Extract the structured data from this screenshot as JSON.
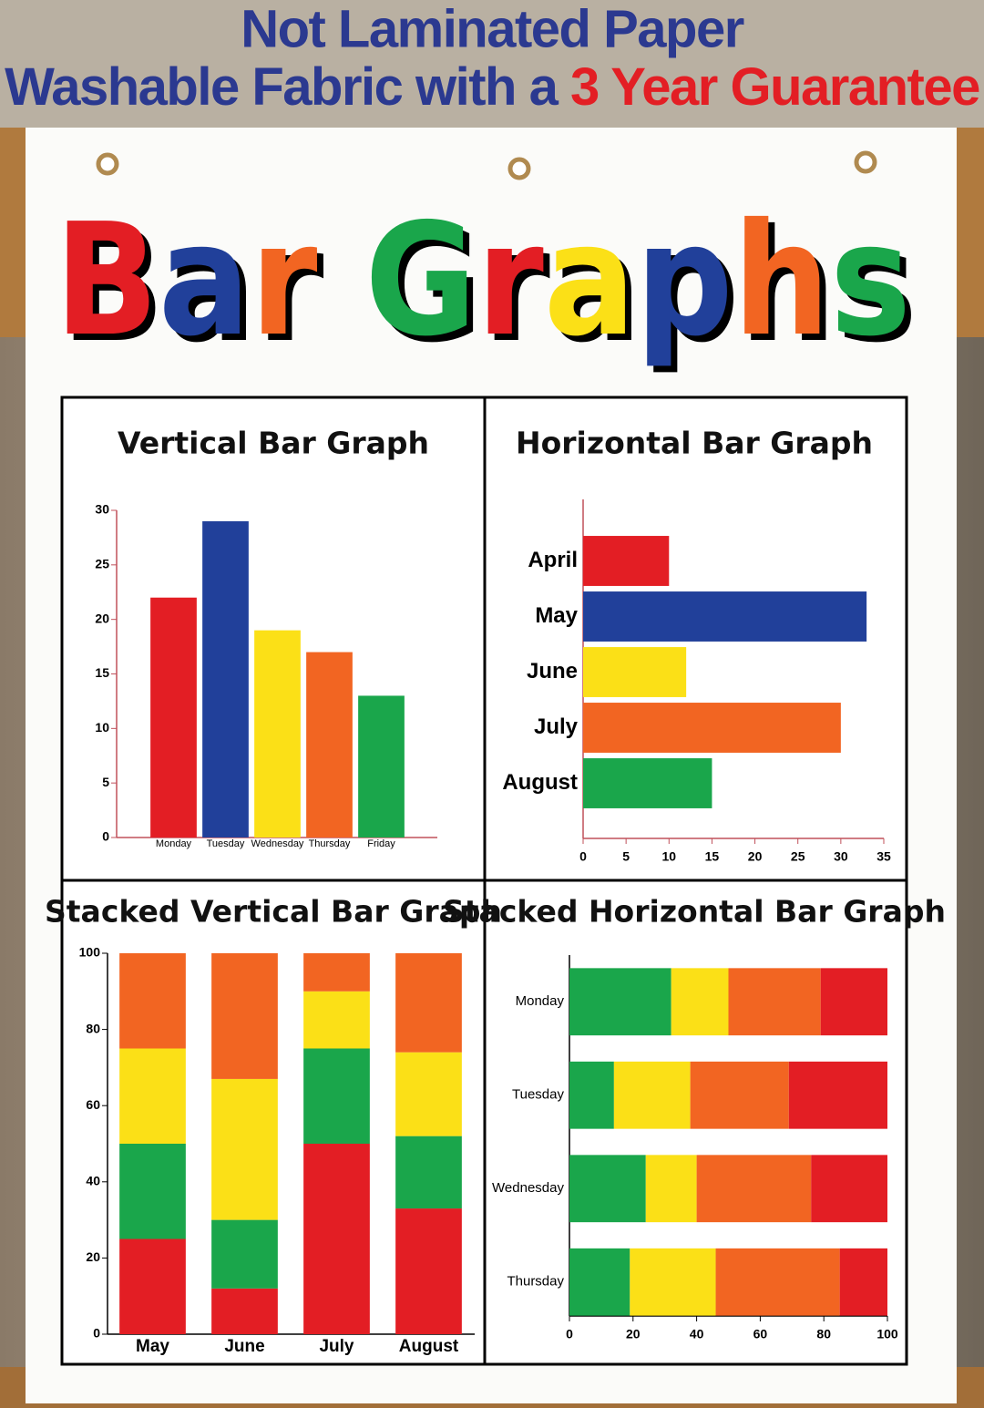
{
  "header": {
    "line1": "Not Laminated Paper",
    "line2_prefix": "Washable Fabric with a",
    "line2_highlight": "3 Year Guarantee",
    "title": "Bar Graphs",
    "title_colors": [
      "#e31e24",
      "#21409a",
      "#f26522",
      "#1aa64b",
      "#e31e24",
      "#fbe017",
      "#21409a",
      "#f26522",
      "#1aa64b"
    ]
  },
  "chart_data": [
    {
      "type": "bar",
      "title": "Vertical Bar Graph",
      "horizontal": false,
      "stacked": false,
      "categories": [
        "Monday",
        "Tuesday",
        "Wednesday",
        "Thursday",
        "Friday"
      ],
      "values": [
        22,
        29,
        19,
        17,
        13
      ],
      "colors": [
        "#e31e24",
        "#21409a",
        "#fbe017",
        "#f26522",
        "#1aa64b"
      ],
      "ylim": [
        0,
        30
      ],
      "yticks": [
        0,
        5,
        10,
        15,
        20,
        25,
        30
      ]
    },
    {
      "type": "bar",
      "title": "Horizontal Bar Graph",
      "horizontal": true,
      "stacked": false,
      "categories": [
        "April",
        "May",
        "June",
        "July",
        "August"
      ],
      "values": [
        10,
        33,
        12,
        30,
        15
      ],
      "colors": [
        "#e31e24",
        "#21409a",
        "#fbe017",
        "#f26522",
        "#1aa64b"
      ],
      "xlim": [
        0,
        35
      ],
      "xticks": [
        0,
        5,
        10,
        15,
        20,
        25,
        30,
        35
      ]
    },
    {
      "type": "bar",
      "title": "Stacked Vertical Bar Graph",
      "horizontal": false,
      "stacked": true,
      "categories": [
        "May",
        "June",
        "July",
        "August"
      ],
      "series": [
        {
          "color": "#e31e24",
          "values": [
            25,
            12,
            50,
            33
          ]
        },
        {
          "color": "#1aa64b",
          "values": [
            25,
            18,
            25,
            19
          ]
        },
        {
          "color": "#fbe017",
          "values": [
            25,
            37,
            15,
            22
          ]
        },
        {
          "color": "#f26522",
          "values": [
            25,
            33,
            10,
            26
          ]
        }
      ],
      "ylim": [
        0,
        100
      ],
      "yticks": [
        0,
        20,
        40,
        60,
        80,
        100
      ]
    },
    {
      "type": "bar",
      "title": "Stacked Horizontal Bar Graph",
      "horizontal": true,
      "stacked": true,
      "categories": [
        "Monday",
        "Tuesday",
        "Wednesday",
        "Thursday"
      ],
      "series": [
        {
          "color": "#1aa64b",
          "values": [
            32,
            14,
            24,
            19
          ]
        },
        {
          "color": "#fbe017",
          "values": [
            18,
            24,
            16,
            27
          ]
        },
        {
          "color": "#f26522",
          "values": [
            29,
            31,
            36,
            39
          ]
        },
        {
          "color": "#e31e24",
          "values": [
            21,
            31,
            24,
            15
          ]
        }
      ],
      "xlim": [
        0,
        100
      ],
      "xticks": [
        0,
        20,
        40,
        60,
        80,
        100
      ]
    }
  ]
}
